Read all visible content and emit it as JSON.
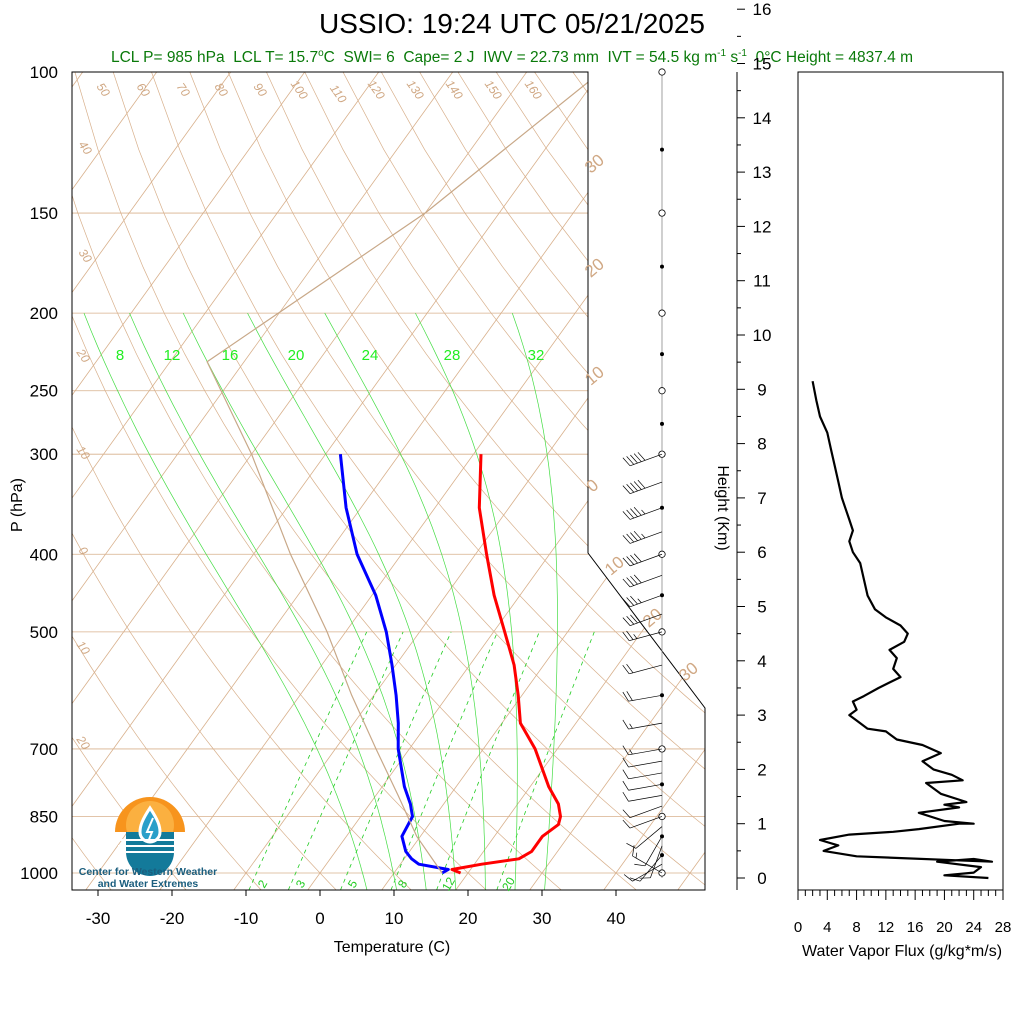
{
  "title": "USSIO: 19:24 UTC 05/21/2025",
  "stats": {
    "lcl_p": "LCL P= 985 hPa",
    "lcl_t": "LCL T= 15.7",
    "swi": "SWI= 6",
    "cape": "Cape= 2 J",
    "iwv": "IWV = 22.73 mm",
    "ivt": "IVT = 54.5 kg m",
    "zero_c": "0°C Height = 4837.4 m"
  },
  "logo": {
    "line1": "Center for Western Weather",
    "line2": "and Water Extremes"
  },
  "chart_data": [
    {
      "type": "line",
      "subtype": "skew-t",
      "xlabel": "Temperature (C)",
      "ylabel": "P (hPa)",
      "xticks": [
        -30,
        -20,
        -10,
        0,
        10,
        20,
        30,
        40
      ],
      "yticks": [
        100,
        150,
        200,
        250,
        300,
        400,
        500,
        700,
        850,
        1000
      ],
      "height_ticks": [
        0,
        1,
        2,
        3,
        4,
        5,
        6,
        7,
        8,
        9,
        10,
        11,
        12,
        13,
        14,
        15,
        16
      ],
      "height_label": "Height (Km)",
      "mixing_ratio_labels": [
        "8",
        "12",
        "16",
        "20",
        "24",
        "28",
        "32"
      ],
      "dry_adiabat_labels": [
        "50",
        "60",
        "70",
        "80",
        "90",
        "100",
        "110",
        "120",
        "130",
        "140",
        "150",
        "160",
        "40",
        "30",
        "20",
        "10",
        "0",
        "10",
        "20"
      ],
      "isotherm_labels": [
        "30",
        "20",
        "10",
        "0",
        "10",
        "20",
        "30"
      ],
      "bottom_labels": [
        "2",
        "3",
        "5",
        "8",
        "12",
        "20"
      ],
      "series": [
        {
          "name": "Temperature",
          "color": "#ff0000",
          "points": [
            [
              1000,
              19.0
            ],
            [
              990,
              17.5
            ],
            [
              975,
              21.0
            ],
            [
              960,
              25.5
            ],
            [
              940,
              26.5
            ],
            [
              900,
              26.5
            ],
            [
              870,
              27.5
            ],
            [
              850,
              27.0
            ],
            [
              820,
              25.5
            ],
            [
              780,
              22.5
            ],
            [
              700,
              17.0
            ],
            [
              650,
              12.5
            ],
            [
              600,
              9.5
            ],
            [
              550,
              6.0
            ],
            [
              500,
              1.5
            ],
            [
              450,
              -3.5
            ],
            [
              400,
              -8.5
            ],
            [
              350,
              -14.0
            ],
            [
              300,
              -19.0
            ]
          ]
        },
        {
          "name": "Dewpoint",
          "color": "#0000ff",
          "points": [
            [
              1000,
              16.5
            ],
            [
              990,
              17.0
            ],
            [
              975,
              12.5
            ],
            [
              960,
              11.0
            ],
            [
              940,
              9.5
            ],
            [
              900,
              7.5
            ],
            [
              850,
              7.0
            ],
            [
              820,
              5.5
            ],
            [
              780,
              3.0
            ],
            [
              700,
              -1.5
            ],
            [
              650,
              -4.0
            ],
            [
              600,
              -7.0
            ],
            [
              550,
              -10.5
            ],
            [
              500,
              -14.5
            ],
            [
              450,
              -19.5
            ],
            [
              400,
              -26.0
            ],
            [
              350,
              -32.0
            ],
            [
              300,
              -38.0
            ]
          ]
        },
        {
          "name": "Parcel",
          "color": "#c8a888",
          "points": [
            [
              1000,
              16.5
            ],
            [
              900,
              9.5
            ],
            [
              800,
              3.0
            ],
            [
              700,
              -4.5
            ],
            [
              600,
              -13.0
            ],
            [
              500,
              -22.5
            ],
            [
              400,
              -35.0
            ],
            [
              300,
              -50.0
            ],
            [
              230,
              -65.0
            ],
            [
              150,
              -50.0
            ],
            [
              100,
              -40.0
            ]
          ]
        }
      ],
      "wind_barbs": {
        "pressures": [
          1000,
          975,
          950,
          925,
          900,
          875,
          850,
          825,
          800,
          775,
          750,
          725,
          700,
          650,
          600,
          550,
          500,
          475,
          450,
          425,
          400,
          375,
          350,
          325,
          300
        ],
        "directions": [
          300,
          240,
          220,
          200,
          210,
          230,
          250,
          250,
          260,
          260,
          260,
          260,
          260,
          260,
          260,
          255,
          255,
          250,
          250,
          250,
          250,
          250,
          250,
          250,
          250
        ],
        "speeds": [
          15,
          10,
          10,
          10,
          10,
          10,
          10,
          10,
          10,
          10,
          10,
          10,
          15,
          15,
          20,
          20,
          25,
          30,
          35,
          40,
          40,
          45,
          45,
          50,
          50
        ]
      }
    },
    {
      "type": "line",
      "xlabel": "Water Vapor Flux (g/kg*m/s)",
      "xticks": [
        0,
        4,
        8,
        12,
        16,
        20,
        24,
        28
      ],
      "xlim": [
        0,
        28
      ],
      "ylim": [
        0,
        16.5
      ],
      "series": [
        {
          "name": "Water Vapor Flux",
          "color": "#000000",
          "points": [
            [
              26.0,
              0.0
            ],
            [
              20.0,
              0.05
            ],
            [
              24.0,
              0.1
            ],
            [
              25.0,
              0.2
            ],
            [
              19.0,
              0.3
            ],
            [
              24.0,
              0.35
            ],
            [
              26.5,
              0.3
            ],
            [
              8.0,
              0.4
            ],
            [
              3.5,
              0.5
            ],
            [
              5.5,
              0.6
            ],
            [
              3.0,
              0.7
            ],
            [
              7.0,
              0.8
            ],
            [
              13.0,
              0.85
            ],
            [
              16.5,
              0.9
            ],
            [
              22.0,
              1.0
            ],
            [
              24.0,
              1.0
            ],
            [
              20.0,
              1.05
            ],
            [
              16.5,
              1.2
            ],
            [
              22.0,
              1.3
            ],
            [
              20.0,
              1.35
            ],
            [
              23.0,
              1.4
            ],
            [
              19.5,
              1.55
            ],
            [
              17.5,
              1.75
            ],
            [
              22.5,
              1.8
            ],
            [
              21.0,
              1.9
            ],
            [
              18.5,
              2.0
            ],
            [
              17.0,
              2.15
            ],
            [
              19.5,
              2.3
            ],
            [
              17.0,
              2.45
            ],
            [
              13.5,
              2.55
            ],
            [
              12.0,
              2.7
            ],
            [
              9.5,
              2.75
            ],
            [
              8.0,
              2.9
            ],
            [
              7.0,
              3.0
            ],
            [
              8.0,
              3.1
            ],
            [
              7.5,
              3.25
            ],
            [
              9.0,
              3.35
            ],
            [
              11.0,
              3.5
            ],
            [
              12.5,
              3.6
            ],
            [
              14.0,
              3.7
            ],
            [
              13.0,
              3.85
            ],
            [
              13.5,
              4.05
            ],
            [
              12.5,
              4.2
            ],
            [
              14.5,
              4.35
            ],
            [
              15.0,
              4.5
            ],
            [
              14.0,
              4.65
            ],
            [
              12.0,
              4.8
            ],
            [
              10.5,
              4.95
            ],
            [
              9.5,
              5.2
            ],
            [
              9.0,
              5.5
            ],
            [
              8.5,
              5.8
            ],
            [
              7.5,
              6.0
            ],
            [
              7.0,
              6.2
            ],
            [
              7.5,
              6.4
            ],
            [
              7.0,
              6.6
            ],
            [
              6.5,
              6.8
            ],
            [
              6.0,
              7.0
            ],
            [
              5.5,
              7.3
            ],
            [
              5.0,
              7.6
            ],
            [
              4.5,
              7.9
            ],
            [
              4.0,
              8.2
            ],
            [
              3.0,
              8.5
            ],
            [
              2.5,
              8.8
            ],
            [
              2.0,
              9.15
            ]
          ]
        }
      ]
    }
  ]
}
